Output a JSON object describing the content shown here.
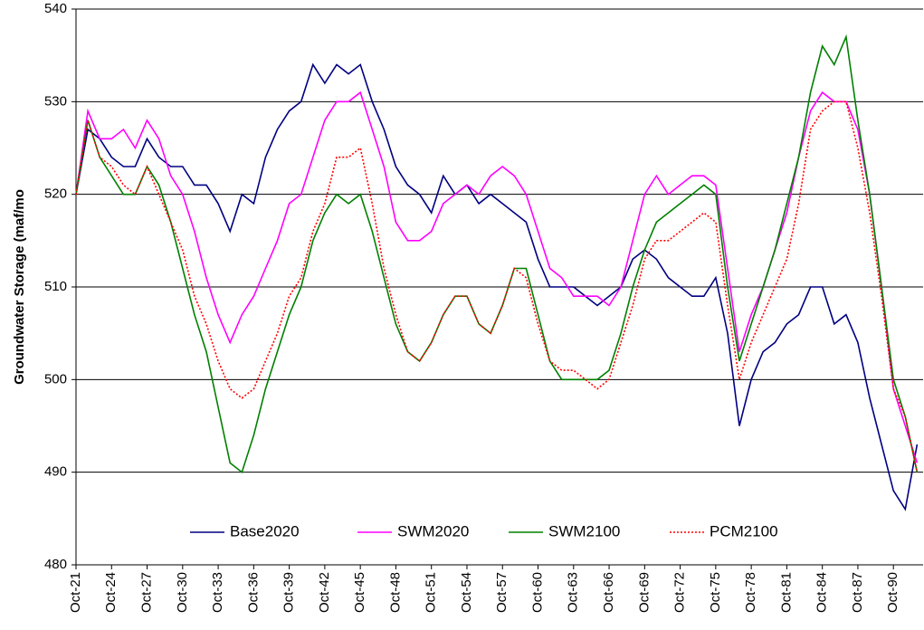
{
  "chart_data": {
    "type": "line",
    "y_label": "Groundwater Storage (maf/mo",
    "categories": [
      "Oct-21",
      null,
      null,
      "Oct-24",
      null,
      null,
      "Oct-27",
      null,
      null,
      "Oct-30",
      null,
      null,
      "Oct-33",
      null,
      null,
      "Oct-36",
      null,
      null,
      "Oct-39",
      null,
      null,
      "Oct-42",
      null,
      null,
      "Oct-45",
      null,
      null,
      "Oct-48",
      null,
      null,
      "Oct-51",
      null,
      null,
      "Oct-54",
      null,
      null,
      "Oct-57",
      null,
      null,
      "Oct-60",
      null,
      null,
      "Oct-63",
      null,
      null,
      "Oct-66",
      null,
      null,
      "Oct-69",
      null,
      null,
      "Oct-72",
      null,
      null,
      "Oct-75",
      null,
      null,
      "Oct-78",
      null,
      null,
      "Oct-81",
      null,
      null,
      "Oct-84",
      null,
      null,
      "Oct-87",
      null,
      null,
      "Oct-90",
      null,
      null
    ],
    "series": [
      {
        "name": "Base2020",
        "color": "#000080",
        "dash": "solid",
        "values": [
          520,
          527,
          526,
          524,
          523,
          523,
          526,
          524,
          523,
          523,
          521,
          521,
          519,
          516,
          520,
          519,
          524,
          527,
          529,
          530,
          534,
          532,
          534,
          533,
          534,
          530,
          527,
          523,
          521,
          520,
          518,
          522,
          520,
          521,
          519,
          520,
          519,
          518,
          517,
          513,
          510,
          510,
          510,
          509,
          508,
          509,
          510,
          513,
          514,
          513,
          511,
          510,
          509,
          509,
          511,
          505,
          495,
          500,
          503,
          504,
          506,
          507,
          510,
          510,
          506,
          507,
          504,
          498,
          493,
          488,
          486,
          493
        ]
      },
      {
        "name": "SWM2020",
        "color": "#ff00ff",
        "dash": "solid",
        "values": [
          520,
          529,
          526,
          526,
          527,
          525,
          528,
          526,
          522,
          520,
          516,
          511,
          507,
          504,
          507,
          509,
          512,
          515,
          519,
          520,
          524,
          528,
          530,
          530,
          531,
          527,
          523,
          517,
          515,
          515,
          516,
          519,
          520,
          521,
          520,
          522,
          523,
          522,
          520,
          516,
          512,
          511,
          509,
          509,
          509,
          508,
          510,
          515,
          520,
          522,
          520,
          521,
          522,
          522,
          521,
          512,
          503,
          507,
          510,
          514,
          518,
          524,
          529,
          531,
          530,
          530,
          527,
          520,
          510,
          499,
          495,
          491
        ]
      },
      {
        "name": "SWM2100",
        "color": "#008000",
        "dash": "solid",
        "values": [
          520,
          528,
          524,
          522,
          520,
          520,
          523,
          521,
          517,
          512,
          507,
          503,
          497,
          491,
          490,
          494,
          499,
          503,
          507,
          510,
          515,
          518,
          520,
          519,
          520,
          516,
          511,
          506,
          503,
          502,
          504,
          507,
          509,
          509,
          506,
          505,
          508,
          512,
          512,
          507,
          502,
          500,
          500,
          500,
          500,
          501,
          505,
          510,
          514,
          517,
          518,
          519,
          520,
          521,
          520,
          510,
          502,
          506,
          510,
          514,
          519,
          524,
          531,
          536,
          534,
          537,
          528,
          520,
          510,
          500,
          496,
          490
        ]
      },
      {
        "name": "PCM2100",
        "color": "#ff0000",
        "dash": "dotted",
        "values": [
          520,
          528,
          524,
          523,
          521,
          520,
          523,
          520,
          517,
          514,
          509,
          506,
          502,
          499,
          498,
          499,
          502,
          505,
          509,
          511,
          516,
          519,
          524,
          524,
          525,
          519,
          512,
          507,
          503,
          502,
          504,
          507,
          509,
          509,
          506,
          505,
          508,
          512,
          511,
          506,
          502,
          501,
          501,
          500,
          499,
          500,
          504,
          508,
          513,
          515,
          515,
          516,
          517,
          518,
          517,
          508,
          500,
          504,
          507,
          510,
          513,
          519,
          527,
          529,
          530,
          530,
          525,
          518,
          509,
          499,
          496,
          490
        ]
      }
    ],
    "ylim": [
      480,
      540
    ],
    "yticks": [
      480,
      490,
      500,
      510,
      520,
      530,
      540
    ],
    "grid": true,
    "legend": "lower center"
  }
}
